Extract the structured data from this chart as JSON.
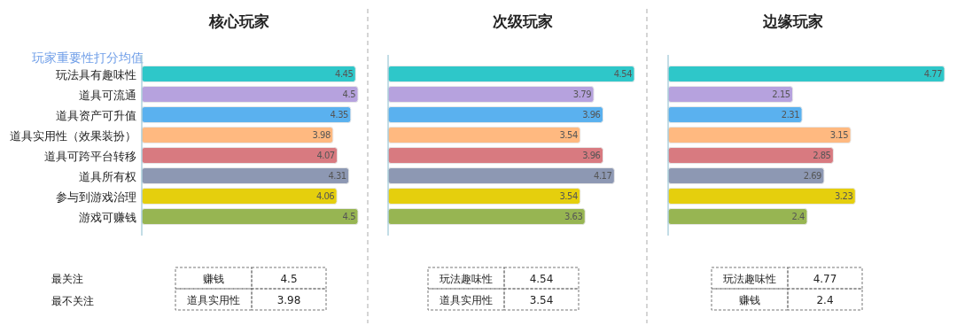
{
  "chart_data": [
    {
      "type": "bar",
      "orientation": "horizontal",
      "title": "核心玩家",
      "ylabel": "玩家重要性打分均值",
      "categories": [
        "玩法具有趣味性",
        "道具可流通",
        "道具资产可升值",
        "道具实用性（效果装扮）",
        "道具可跨平台转移",
        "道具所有权",
        "参与到游戏治理",
        "游戏可赚钱"
      ],
      "values": [
        4.45,
        4.5,
        4.35,
        3.98,
        4.07,
        4.31,
        4.06,
        4.5
      ],
      "colors": [
        "#2ec7c9",
        "#b6a2de",
        "#5ab1ef",
        "#ffb980",
        "#d87a80",
        "#8d98b3",
        "#e5cf0d",
        "#97b552"
      ],
      "data_labels": true,
      "tick_labels": "y",
      "annotations": [
        "最关注",
        "最不关注",
        "赚钱",
        "4.5",
        "道具实用性",
        "3.98"
      ]
    },
    {
      "type": "bar",
      "orientation": "horizontal",
      "title": "次级玩家",
      "categories": [
        null,
        null,
        null,
        null,
        null,
        null,
        null,
        null
      ],
      "values": [
        4.54,
        3.79,
        3.96,
        3.54,
        3.96,
        4.17,
        3.54,
        3.63
      ],
      "colors": [
        "#2ec7c9",
        "#b6a2de",
        "#5ab1ef",
        "#ffb980",
        "#d87a80",
        "#8d98b3",
        "#e5cf0d",
        "#97b552"
      ],
      "data_labels": true,
      "tick_labels": false,
      "annotations": [
        "玩法趣味性",
        "4.54",
        "道具实用性",
        "3.54"
      ]
    },
    {
      "type": "bar",
      "orientation": "horizontal",
      "title": "边缘玩家",
      "categories": [
        null,
        null,
        null,
        null,
        null,
        null,
        null,
        null
      ],
      "values": [
        4.77,
        2.15,
        2.31,
        3.15,
        2.85,
        2.69,
        3.23,
        2.4
      ],
      "colors": [
        "#2ec7c9",
        "#b6a2de",
        "#5ab1ef",
        "#ffb980",
        "#d87a80",
        "#8d98b3",
        "#e5cf0d",
        "#97b552"
      ],
      "data_labels": true,
      "tick_labels": false,
      "annotations": [
        "玩法趣味性",
        "4.77",
        "赚钱",
        "2.4"
      ]
    }
  ]
}
